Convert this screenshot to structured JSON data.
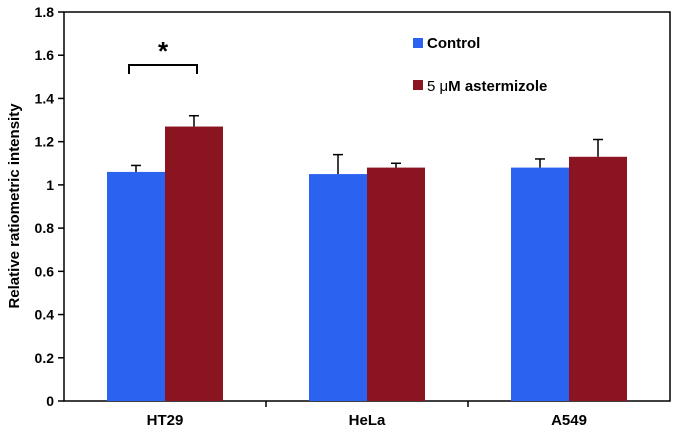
{
  "chart_data": {
    "type": "bar",
    "title": "",
    "xlabel": "",
    "ylabel": "Relative ratiometric intensity",
    "ylim": [
      0,
      1.8
    ],
    "yticks": [
      "0",
      "0.2",
      "0.4",
      "0.6",
      "0.8",
      "1",
      "1.2",
      "1.4",
      "1.6",
      "1.8"
    ],
    "categories": [
      "HT29",
      "HeLa",
      "A549"
    ],
    "series": [
      {
        "name": "Control",
        "color": "#2b63f0",
        "values": [
          1.06,
          1.05,
          1.08
        ],
        "errors": [
          0.03,
          0.09,
          0.04
        ]
      },
      {
        "name": "5 μM astermizole",
        "color": "#8b1421",
        "values": [
          1.27,
          1.08,
          1.13
        ],
        "errors": [
          0.05,
          0.02,
          0.08
        ]
      }
    ],
    "legend": {
      "position": "top-right",
      "items": [
        {
          "prefix": "",
          "text": "Control"
        },
        {
          "prefix": "5 μ",
          "text": "M astermizole"
        }
      ]
    },
    "annotations": [
      {
        "text": "*",
        "category": "HT29",
        "type": "significance-bracket"
      }
    ],
    "grid": false
  }
}
